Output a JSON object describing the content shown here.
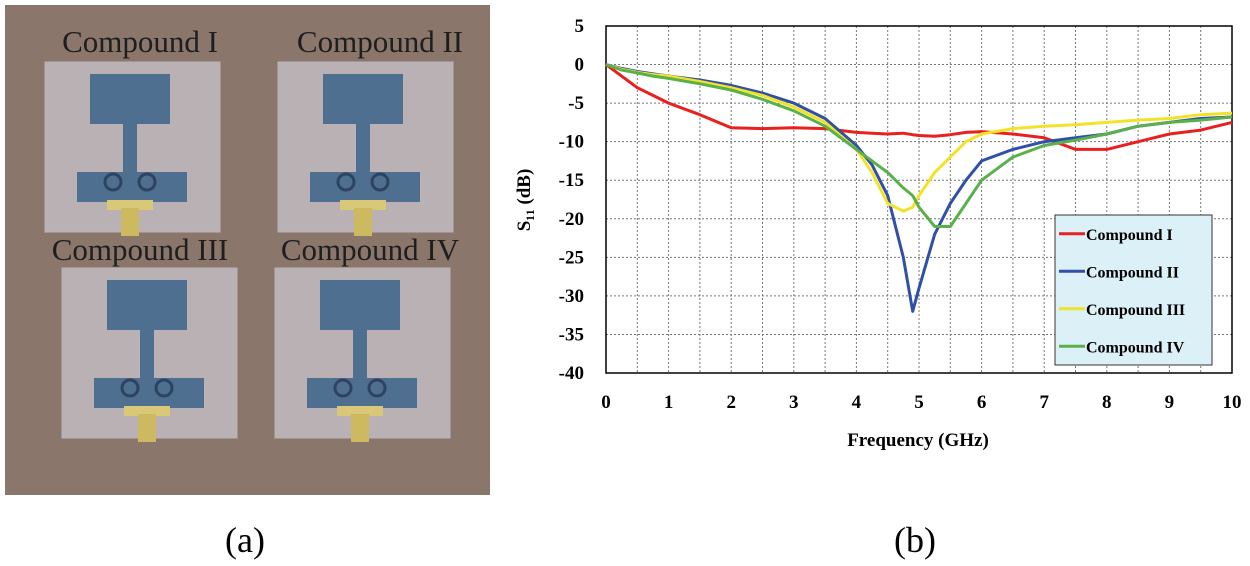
{
  "photo": {
    "labels": [
      "Compound I",
      "Compound II",
      "Compound III",
      "Compound IV"
    ],
    "panel_label": "(a)"
  },
  "chart_panel_label": "(b)",
  "chart_data": {
    "type": "line",
    "x_label": "Frequency (GHz)",
    "y_label": "S₁₁ (dB)",
    "x": [
      0,
      0.25,
      0.5,
      0.75,
      1,
      1.5,
      2,
      2.5,
      3,
      3.5,
      4,
      4.25,
      4.5,
      4.75,
      4.9,
      5,
      5.25,
      5.5,
      5.75,
      6,
      6.5,
      7,
      7.5,
      8,
      8.5,
      9,
      9.5,
      10
    ],
    "series": [
      {
        "name": "Compound I",
        "color": "#e8201f",
        "values": [
          0,
          -1.5,
          -3,
          -4,
          -5,
          -6.5,
          -8.2,
          -8.3,
          -8.2,
          -8.3,
          -8.8,
          -8.9,
          -9,
          -8.9,
          -9.1,
          -9.2,
          -9.3,
          -9.1,
          -8.8,
          -8.7,
          -9,
          -9.5,
          -11,
          -11,
          -10,
          -9,
          -8.5,
          -7.5
        ]
      },
      {
        "name": "Compound II",
        "color": "#3050a8",
        "values": [
          0,
          -0.5,
          -0.9,
          -1.2,
          -1.5,
          -2,
          -2.7,
          -3.7,
          -5,
          -7,
          -10.5,
          -13,
          -17,
          -25,
          -32,
          -29,
          -22,
          -18,
          -15,
          -12.5,
          -11,
          -10,
          -9.5,
          -9,
          -8,
          -7.5,
          -7,
          -6.8
        ]
      },
      {
        "name": "Compound III",
        "color": "#f2e22a",
        "values": [
          0,
          -0.6,
          -1,
          -1.3,
          -1.5,
          -2.2,
          -3,
          -4,
          -5.5,
          -7.5,
          -11,
          -14,
          -18,
          -19,
          -18.5,
          -17,
          -14,
          -12,
          -10,
          -9,
          -8.3,
          -8,
          -7.8,
          -7.5,
          -7.2,
          -7,
          -6.5,
          -6.3
        ]
      },
      {
        "name": "Compound IV",
        "color": "#5ab04a",
        "values": [
          0,
          -0.7,
          -1.1,
          -1.5,
          -1.8,
          -2.5,
          -3.3,
          -4.5,
          -6,
          -8,
          -11,
          -12.5,
          -14,
          -16,
          -17,
          -18.5,
          -21,
          -21,
          -18,
          -15,
          -12,
          -10.5,
          -9.8,
          -9,
          -8,
          -7.5,
          -7.2,
          -6.8
        ]
      }
    ],
    "xlim": [
      0,
      10
    ],
    "xticks": [
      0,
      1,
      2,
      3,
      4,
      5,
      6,
      7,
      8,
      9,
      10
    ],
    "ylim": [
      -40,
      5
    ],
    "yticks": [
      5,
      0,
      -5,
      -10,
      -15,
      -20,
      -25,
      -30,
      -35,
      -40
    ],
    "grid": true,
    "legend": "lower right"
  }
}
